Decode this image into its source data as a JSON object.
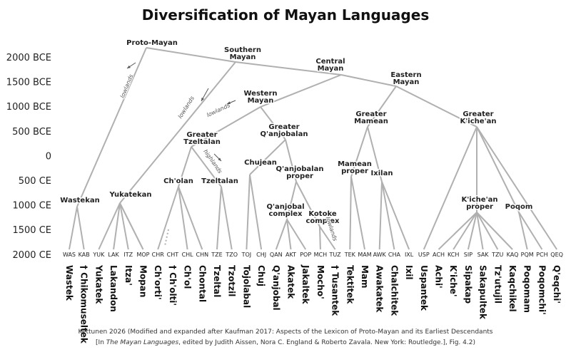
{
  "header": {
    "title": "Diversification of Mayan Languages"
  },
  "time_axis": [
    "2000 BCE",
    "1500 BCE",
    "1000 BCE",
    "500 BCE",
    "0",
    "500 CE",
    "1000 CE",
    "1500 CE",
    "2000 CE"
  ],
  "nodes": [
    {
      "label": [
        "Proto-Mayan"
      ]
    },
    {
      "label": [
        "Southern",
        "Mayan"
      ]
    },
    {
      "label": [
        "Central",
        "Mayan"
      ]
    },
    {
      "label": [
        "Eastern",
        "Mayan"
      ]
    },
    {
      "label": [
        "Western",
        "Mayan"
      ]
    },
    {
      "label": [
        "Greater",
        "Mamean"
      ]
    },
    {
      "label": [
        "Greater",
        "K'iche'an"
      ]
    },
    {
      "label": [
        "Greater",
        "Q'anjobalan"
      ]
    },
    {
      "label": [
        "Greater",
        "Tzeltalan"
      ]
    },
    {
      "label": [
        "Chujean"
      ]
    },
    {
      "label": [
        "Q'anjobalan",
        "proper"
      ]
    },
    {
      "label": [
        "Mamean",
        "proper"
      ]
    },
    {
      "label": [
        "Ixilan"
      ]
    },
    {
      "label": [
        "Ch'olan"
      ]
    },
    {
      "label": [
        "Tzeltalan"
      ]
    },
    {
      "label": [
        "Yukatekan"
      ]
    },
    {
      "label": [
        "Wastekan"
      ]
    },
    {
      "label": [
        "K'iche'an",
        "proper"
      ]
    },
    {
      "label": [
        "Poqom"
      ]
    },
    {
      "label": [
        "Q'anjobal",
        "complex"
      ]
    },
    {
      "label": [
        "Kotoke",
        "complex"
      ]
    }
  ],
  "leaves": [
    {
      "code": "WAS",
      "name": "Wastek"
    },
    {
      "code": "KAB",
      "name": "† Chikomuseltek"
    },
    {
      "code": "YUK",
      "name": "Yukatek"
    },
    {
      "code": "LAK",
      "name": "Lakandon"
    },
    {
      "code": "ITZ",
      "name": "Itza'"
    },
    {
      "code": "MOP",
      "name": "Mopan"
    },
    {
      "code": "CHR",
      "name": "Ch'orti'"
    },
    {
      "code": "CHT",
      "name": "† Ch'olti'"
    },
    {
      "code": "CHL",
      "name": "Ch'ol"
    },
    {
      "code": "CHN",
      "name": "Chontal"
    },
    {
      "code": "TZE",
      "name": "Tzeltal"
    },
    {
      "code": "TZO",
      "name": "Tzotzil"
    },
    {
      "code": "TOJ",
      "name": "Tojolabal"
    },
    {
      "code": "CHJ",
      "name": "Chuj"
    },
    {
      "code": "QAN",
      "name": "Q'anjobal"
    },
    {
      "code": "AKT",
      "name": "Akatek"
    },
    {
      "code": "POP",
      "name": "Jakaltek"
    },
    {
      "code": "MCH",
      "name": "Mocho'"
    },
    {
      "code": "TUZ",
      "name": "† Tusantek"
    },
    {
      "code": "TEK",
      "name": "Tektitek"
    },
    {
      "code": "MAM",
      "name": "Mam"
    },
    {
      "code": "AWK",
      "name": "Awakatek"
    },
    {
      "code": "CHA",
      "name": "Chalchitek"
    },
    {
      "code": "IXL",
      "name": "Ixil"
    },
    {
      "code": "USP",
      "name": "Uspantek"
    },
    {
      "code": "ACH",
      "name": "Achi'"
    },
    {
      "code": "KCH",
      "name": "K'iche'"
    },
    {
      "code": "SIP",
      "name": "Sipakap"
    },
    {
      "code": "SAK",
      "name": "Sakapultek"
    },
    {
      "code": "TZU",
      "name": "Tz'utujil"
    },
    {
      "code": "KAQ",
      "name": "Kaqchikel"
    },
    {
      "code": "PQM",
      "name": "Poqomam"
    },
    {
      "code": "PCH",
      "name": "Poqomchi'"
    },
    {
      "code": "QEQ",
      "name": "Q'eqchi'"
    }
  ],
  "annotations": [
    "lowlands",
    "lowlands",
    "lowlands",
    "highlands",
    "lowlands"
  ],
  "footer": {
    "line1": "Kettunen 2026 (Modified and expanded after Kaufman 2017: Aspects of the Lexicon of Proto-Mayan and its Earliest Descendants",
    "line2_a": "[In ",
    "line2_b": "The Mayan Languages",
    "line2_c": ", edited by Judith Aissen, Nora C. England & Roberto Zavala. New York: Routledge.], Fig. 4.2)"
  }
}
